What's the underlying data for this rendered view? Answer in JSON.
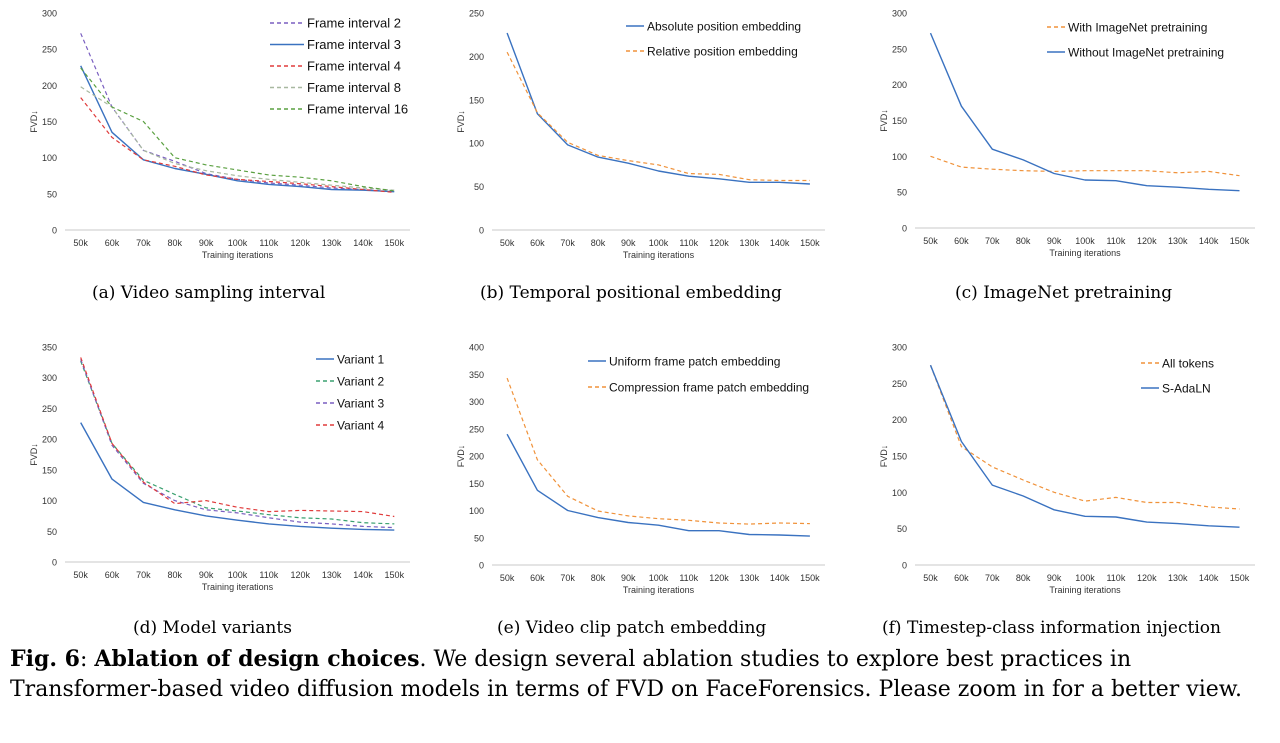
{
  "chart_data": [
    {
      "type": "line",
      "title": "",
      "xlabel": "Training iterations",
      "ylabel": "FVD↓",
      "ylim": [
        0,
        300
      ],
      "yticks": [
        0,
        50,
        100,
        150,
        200,
        250,
        300
      ],
      "categories": [
        "50k",
        "60k",
        "70k",
        "80k",
        "90k",
        "100k",
        "110k",
        "120k",
        "130k",
        "140k",
        "150k"
      ],
      "legend_position": "top-right",
      "caption": "(a) Video sampling interval",
      "series": [
        {
          "name": "Frame interval 2",
          "color": "#7a5fc0",
          "dash": true,
          "values": [
            272,
            170,
            110,
            95,
            78,
            70,
            65,
            62,
            58,
            56,
            53
          ]
        },
        {
          "name": "Frame interval 3",
          "color": "#3a72c0",
          "dash": false,
          "values": [
            227,
            135,
            97,
            85,
            77,
            68,
            63,
            60,
            56,
            55,
            53
          ]
        },
        {
          "name": "Frame interval 4",
          "color": "#e03c3c",
          "dash": true,
          "values": [
            183,
            128,
            97,
            88,
            76,
            70,
            67,
            64,
            60,
            56,
            52
          ]
        },
        {
          "name": "Frame interval 8",
          "color": "#a8b8a0",
          "dash": true,
          "values": [
            198,
            170,
            110,
            92,
            82,
            75,
            70,
            66,
            62,
            58,
            55
          ]
        },
        {
          "name": "Frame interval 16",
          "color": "#5aa040",
          "dash": true,
          "values": [
            224,
            170,
            150,
            100,
            90,
            83,
            76,
            73,
            68,
            60,
            54
          ]
        }
      ]
    },
    {
      "type": "line",
      "title": "",
      "xlabel": "Training iterations",
      "ylabel": "FVD↓",
      "ylim": [
        0,
        250
      ],
      "yticks": [
        0,
        50,
        100,
        150,
        200,
        250
      ],
      "categories": [
        "50k",
        "60k",
        "70k",
        "80k",
        "90k",
        "100k",
        "110k",
        "120k",
        "130k",
        "140k",
        "150k"
      ],
      "legend_position": "top-right",
      "caption": "(b) Temporal positional embedding",
      "series": [
        {
          "name": "Absolute position embedding",
          "color": "#3a72c0",
          "dash": false,
          "values": [
            227,
            134,
            98,
            84,
            77,
            68,
            62,
            59,
            55,
            55,
            53
          ]
        },
        {
          "name": "Relative position embedding",
          "color": "#f0923a",
          "dash": true,
          "values": [
            205,
            135,
            101,
            86,
            80,
            75,
            65,
            64,
            58,
            57,
            57
          ]
        }
      ]
    },
    {
      "type": "line",
      "title": "",
      "xlabel": "Training iterations",
      "ylabel": "FVD↓",
      "ylim": [
        0,
        300
      ],
      "yticks": [
        0,
        50,
        100,
        150,
        200,
        250,
        300
      ],
      "categories": [
        "50k",
        "60k",
        "70k",
        "80k",
        "90k",
        "100k",
        "110k",
        "120k",
        "130k",
        "140k",
        "150k"
      ],
      "legend_position": "top-right",
      "caption": "(c) ImageNet pretraining",
      "series": [
        {
          "name": "With ImageNet pretraining",
          "color": "#f0923a",
          "dash": true,
          "values": [
            100,
            85,
            82,
            80,
            79,
            80,
            80,
            80,
            77,
            79,
            73
          ]
        },
        {
          "name": "Without ImageNet pretraining",
          "color": "#3a72c0",
          "dash": false,
          "values": [
            272,
            170,
            110,
            95,
            76,
            67,
            66,
            59,
            57,
            54,
            52
          ]
        }
      ]
    },
    {
      "type": "line",
      "title": "",
      "xlabel": "Training iterations",
      "ylabel": "FVD↓",
      "ylim": [
        0,
        350
      ],
      "yticks": [
        0,
        50,
        100,
        150,
        200,
        250,
        300,
        350
      ],
      "categories": [
        "50k",
        "60k",
        "70k",
        "80k",
        "90k",
        "100k",
        "110k",
        "120k",
        "130k",
        "140k",
        "150k"
      ],
      "legend_position": "top-right",
      "caption": "(d) Model variants",
      "series": [
        {
          "name": "Variant 1",
          "color": "#3a72c0",
          "dash": false,
          "values": [
            227,
            135,
            97,
            85,
            75,
            68,
            62,
            58,
            55,
            53,
            52
          ]
        },
        {
          "name": "Variant 2",
          "color": "#3aa070",
          "dash": true,
          "values": [
            327,
            193,
            133,
            110,
            88,
            83,
            77,
            72,
            70,
            64,
            62
          ]
        },
        {
          "name": "Variant 3",
          "color": "#7a5fc0",
          "dash": true,
          "values": [
            330,
            190,
            128,
            100,
            85,
            80,
            72,
            65,
            62,
            58,
            56
          ]
        },
        {
          "name": "Variant 4",
          "color": "#e03c3c",
          "dash": true,
          "values": [
            333,
            193,
            130,
            95,
            100,
            89,
            82,
            84,
            83,
            82,
            74
          ]
        }
      ]
    },
    {
      "type": "line",
      "title": "",
      "xlabel": "Training iterations",
      "ylabel": "FVD↓",
      "ylim": [
        0,
        400
      ],
      "yticks": [
        0,
        50,
        100,
        150,
        200,
        250,
        300,
        350,
        400
      ],
      "categories": [
        "50k",
        "60k",
        "70k",
        "80k",
        "90k",
        "100k",
        "110k",
        "120k",
        "130k",
        "140k",
        "150k"
      ],
      "legend_position": "top-right",
      "caption": "(e) Video clip patch embedding",
      "series": [
        {
          "name": "Uniform frame patch embedding",
          "color": "#3a72c0",
          "dash": false,
          "values": [
            240,
            137,
            100,
            87,
            78,
            73,
            63,
            63,
            56,
            55,
            53
          ]
        },
        {
          "name": "Compression frame patch embedding",
          "color": "#f0923a",
          "dash": true,
          "values": [
            343,
            193,
            126,
            99,
            90,
            85,
            82,
            77,
            75,
            77,
            76
          ]
        }
      ]
    },
    {
      "type": "line",
      "title": "",
      "xlabel": "Training iterations",
      "ylabel": "FVD↓",
      "ylim": [
        0,
        300
      ],
      "yticks": [
        0,
        50,
        100,
        150,
        200,
        250,
        300
      ],
      "categories": [
        "50k",
        "60k",
        "70k",
        "80k",
        "90k",
        "100k",
        "110k",
        "120k",
        "130k",
        "140k",
        "150k"
      ],
      "legend_position": "top-right",
      "caption": "(f) Timestep-class information injection",
      "series": [
        {
          "name": "All tokens",
          "color": "#f0923a",
          "dash": true,
          "values": [
            275,
            163,
            135,
            117,
            100,
            88,
            93,
            86,
            86,
            80,
            77
          ]
        },
        {
          "name": "S-AdaLN",
          "color": "#3a72c0",
          "dash": false,
          "values": [
            275,
            170,
            110,
            95,
            76,
            67,
            66,
            59,
            57,
            54,
            52
          ]
        }
      ]
    }
  ],
  "figure_caption": {
    "label": "Fig. 6",
    "title": "Ablation of design choices",
    "body": ". We design several ablation studies to explore best practices in Transformer-based video diffusion models in terms of FVD on FaceForensics. Please zoom in for a better view."
  }
}
